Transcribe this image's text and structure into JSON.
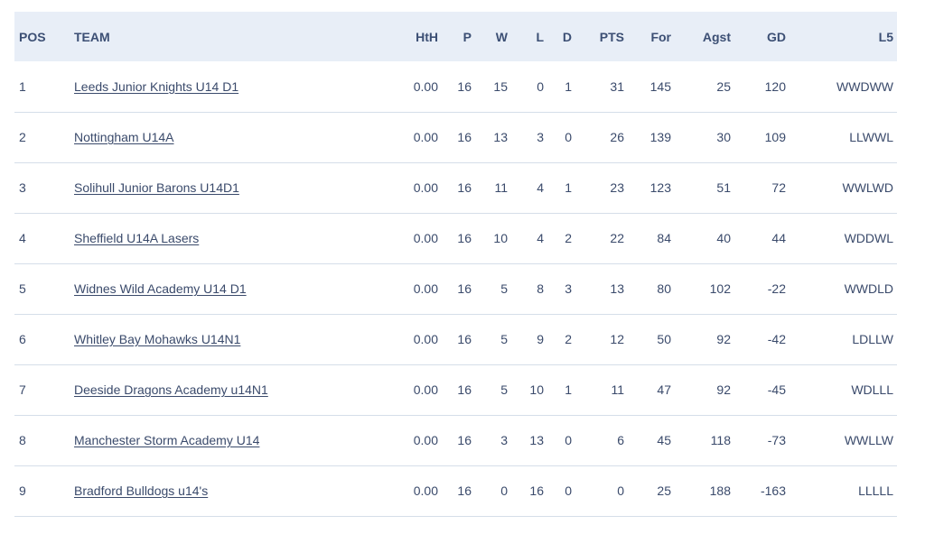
{
  "table": {
    "headers": {
      "pos": "POS",
      "team": "TEAM",
      "hth": "HtH",
      "p": "P",
      "w": "W",
      "l": "L",
      "d": "D",
      "pts": "PTS",
      "for": "For",
      "agst": "Agst",
      "gd": "GD",
      "l5": "L5"
    },
    "rows": [
      {
        "pos": "1",
        "team": "Leeds Junior Knights U14 D1",
        "hth": "0.00",
        "p": "16",
        "w": "15",
        "l": "0",
        "d": "1",
        "pts": "31",
        "for": "145",
        "agst": "25",
        "gd": "120",
        "l5": "WWDWW"
      },
      {
        "pos": "2",
        "team": "Nottingham U14A",
        "hth": "0.00",
        "p": "16",
        "w": "13",
        "l": "3",
        "d": "0",
        "pts": "26",
        "for": "139",
        "agst": "30",
        "gd": "109",
        "l5": "LLWWL"
      },
      {
        "pos": "3",
        "team": "Solihull Junior Barons U14D1",
        "hth": "0.00",
        "p": "16",
        "w": "11",
        "l": "4",
        "d": "1",
        "pts": "23",
        "for": "123",
        "agst": "51",
        "gd": "72",
        "l5": "WWLWD"
      },
      {
        "pos": "4",
        "team": "Sheffield U14A Lasers",
        "hth": "0.00",
        "p": "16",
        "w": "10",
        "l": "4",
        "d": "2",
        "pts": "22",
        "for": "84",
        "agst": "40",
        "gd": "44",
        "l5": "WDDWL"
      },
      {
        "pos": "5",
        "team": "Widnes Wild Academy U14 D1",
        "hth": "0.00",
        "p": "16",
        "w": "5",
        "l": "8",
        "d": "3",
        "pts": "13",
        "for": "80",
        "agst": "102",
        "gd": "-22",
        "l5": "WWDLD"
      },
      {
        "pos": "6",
        "team": "Whitley Bay Mohawks U14N1",
        "hth": "0.00",
        "p": "16",
        "w": "5",
        "l": "9",
        "d": "2",
        "pts": "12",
        "for": "50",
        "agst": "92",
        "gd": "-42",
        "l5": "LDLLW"
      },
      {
        "pos": "7",
        "team": "Deeside Dragons Academy u14N1",
        "hth": "0.00",
        "p": "16",
        "w": "5",
        "l": "10",
        "d": "1",
        "pts": "11",
        "for": "47",
        "agst": "92",
        "gd": "-45",
        "l5": "WDLLL"
      },
      {
        "pos": "8",
        "team": "Manchester Storm Academy U14",
        "hth": "0.00",
        "p": "16",
        "w": "3",
        "l": "13",
        "d": "0",
        "pts": "6",
        "for": "45",
        "agst": "118",
        "gd": "-73",
        "l5": "WWLLW"
      },
      {
        "pos": "9",
        "team": "Bradford Bulldogs u14's",
        "hth": "0.00",
        "p": "16",
        "w": "0",
        "l": "16",
        "d": "0",
        "pts": "0",
        "for": "25",
        "agst": "188",
        "gd": "-163",
        "l5": "LLLLL"
      }
    ]
  }
}
